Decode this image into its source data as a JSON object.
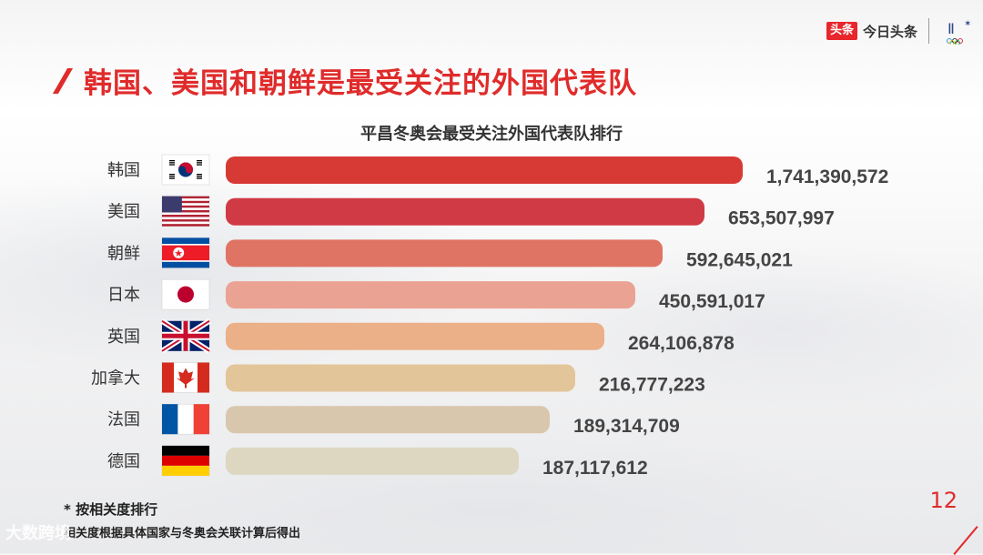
{
  "header": {
    "brand_mark": "头条",
    "brand_name": "今日头条",
    "olympic_logo": "pyeongchang-2018-logo"
  },
  "slide": {
    "title": "韩国、美国和朝鲜是最受关注的外国代表队",
    "page_number": "12",
    "notes": [
      "* 按相关度排行",
      "相关度根据具体国家与冬奥会关联计算后得出"
    ],
    "watermark": "大数跨境"
  },
  "chart_data": {
    "type": "bar",
    "orientation": "horizontal",
    "title": "平昌冬奥会最受关注外国代表队排行",
    "categories": [
      "韩国",
      "美国",
      "朝鲜",
      "日本",
      "英国",
      "加拿大",
      "法国",
      "德国"
    ],
    "values": [
      1741390572,
      653507997,
      592645021,
      450591017,
      264106878,
      216777223,
      189314709,
      187117612
    ],
    "value_labels": [
      "1,741,390,572",
      "653,507,997",
      "592,645,021",
      "450,591,017",
      "264,106,878",
      "216,777,223",
      "189,314,709",
      "187,117,612"
    ],
    "flags": [
      "south-korea-flag-icon",
      "usa-flag-icon",
      "north-korea-flag-icon",
      "japan-flag-icon",
      "uk-flag-icon",
      "canada-flag-icon",
      "france-flag-icon",
      "germany-flag-icon"
    ],
    "colors": [
      "#d73a35",
      "#d03a44",
      "#e07464",
      "#eaa292",
      "#ebb088",
      "#e3c59a",
      "#d9c7ad",
      "#ddd7c1"
    ],
    "scale": "not-linear; bar lengths decrease stepwise with rank",
    "grid": false,
    "legend": "none"
  }
}
